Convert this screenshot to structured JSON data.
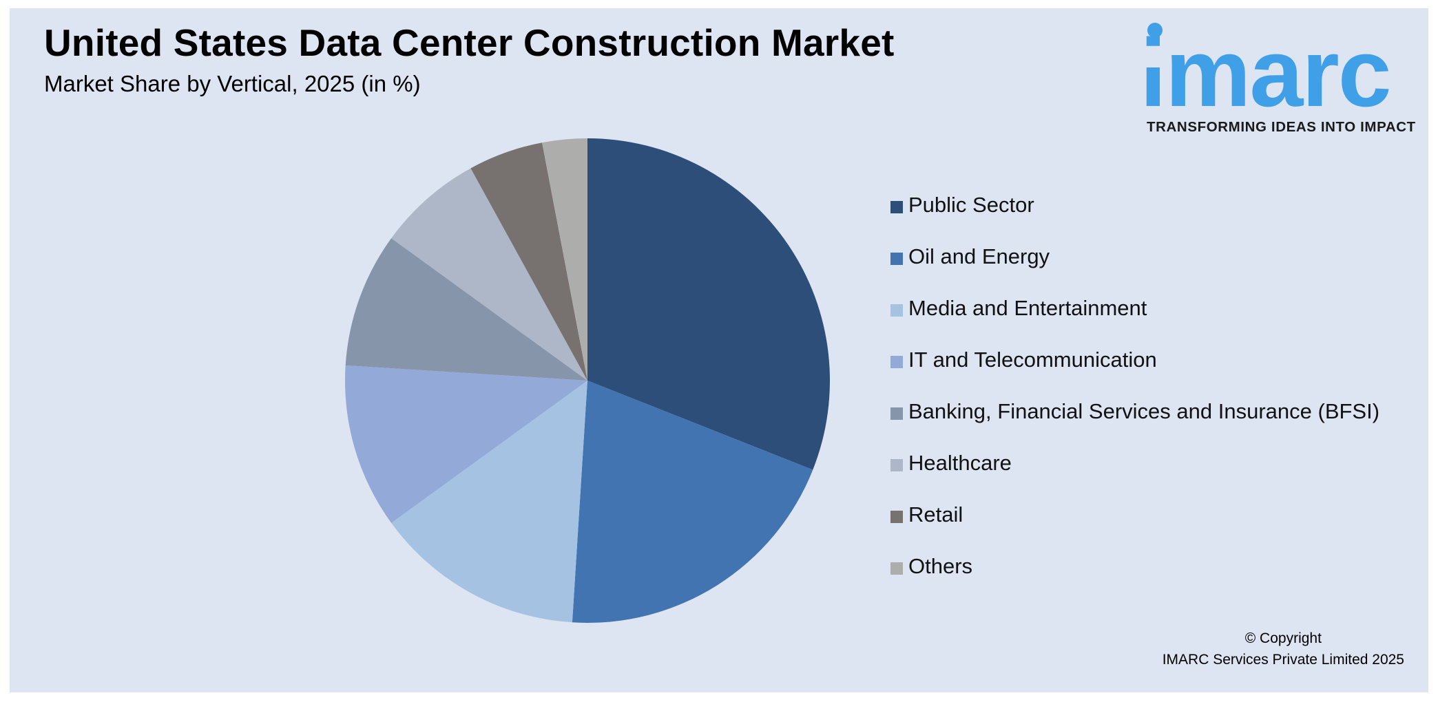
{
  "header": {
    "title": "United States Data Center Construction Market",
    "subtitle": "Market Share by Vertical, 2025 (in %)"
  },
  "logo": {
    "brand": "imarc",
    "tagline": "TRANSFORMING IDEAS INTO IMPACT"
  },
  "chart_data": {
    "type": "pie",
    "title": "United States Data Center Construction Market",
    "subtitle": "Market Share by Vertical, 2025 (in %)",
    "legend_position": "right",
    "slices": [
      {
        "label": "Public Sector",
        "value": 31.0,
        "color": "#2c4e78"
      },
      {
        "label": "Oil and Energy",
        "value": 20.0,
        "color": "#4274b1"
      },
      {
        "label": "Media and Entertainment",
        "value": 14.0,
        "color": "#a5c2e2"
      },
      {
        "label": "IT and Telecommunication",
        "value": 11.0,
        "color": "#93a9d7"
      },
      {
        "label": "Banking, Financial Services and Insurance (BFSI)",
        "value": 9.0,
        "color": "#8795ab"
      },
      {
        "label": "Healthcare",
        "value": 7.0,
        "color": "#adb7c7"
      },
      {
        "label": "Retail",
        "value": 5.0,
        "color": "#777170"
      },
      {
        "label": "Others",
        "value": 3.0,
        "color": "#adadab"
      }
    ]
  },
  "footer": {
    "copyright_line1": "© Copyright",
    "copyright_line2": "IMARC Services Private Limited 2025"
  }
}
